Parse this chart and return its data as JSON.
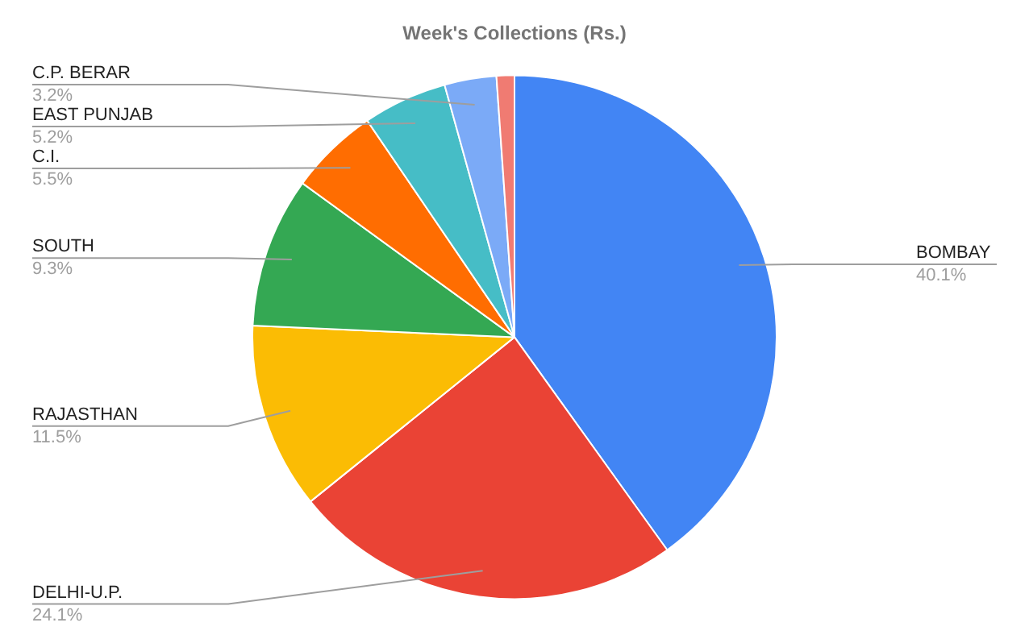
{
  "chart_data": {
    "type": "pie",
    "title": "Week's Collections (Rs.)",
    "categories": [
      "BOMBAY",
      "DELHI-U.P.",
      "RAJASTHAN",
      "SOUTH",
      "C.I.",
      "EAST PUNJAB",
      "C.P. BERAR",
      null
    ],
    "values": [
      40.1,
      24.1,
      11.5,
      9.3,
      5.5,
      5.2,
      3.2,
      1.1
    ],
    "value_labels": [
      "40.1%",
      "24.1%",
      "11.5%",
      "9.3%",
      "5.5%",
      "5.2%",
      "3.2%",
      null
    ],
    "colors": [
      "#4285f4",
      "#ea4335",
      "#fbbc04",
      "#34a853",
      "#ff6d01",
      "#46bdc6",
      "#7baaf7",
      "#f07b72"
    ],
    "legend": false
  }
}
